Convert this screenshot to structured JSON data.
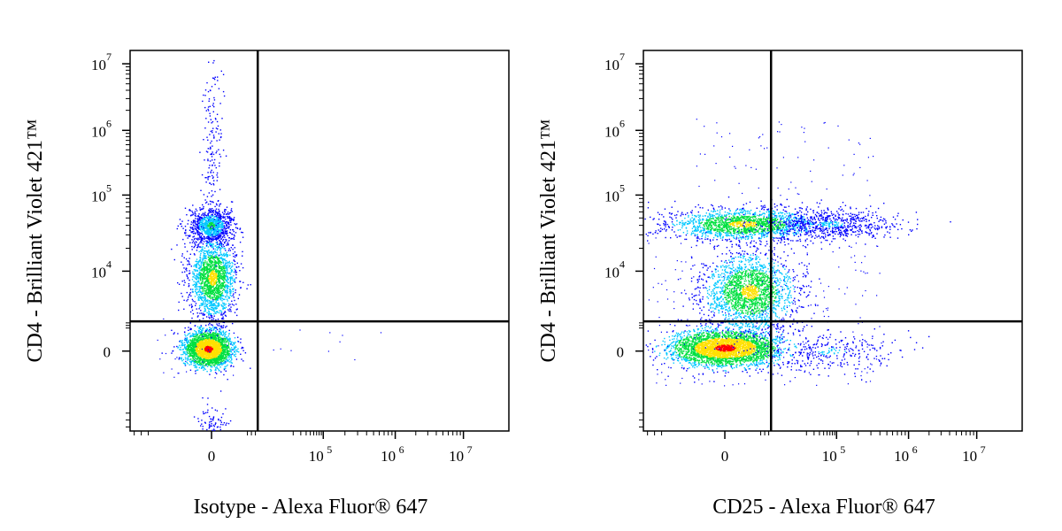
{
  "chart_data": [
    {
      "type": "scatter",
      "title": "",
      "xlabel": "Isotype - Alexa Fluor® 647",
      "ylabel": "CD4 - Brilliant Violet 421™",
      "x_scale": "biexponential",
      "y_scale": "biexponential",
      "x_ticks": [
        {
          "value": 0,
          "label": "0",
          "exp": ""
        },
        {
          "value": 100000,
          "label": "10",
          "exp": "5"
        },
        {
          "value": 1000000,
          "label": "10",
          "exp": "6"
        },
        {
          "value": 10000000,
          "label": "10",
          "exp": "7"
        }
      ],
      "y_ticks": [
        {
          "value": 10000000,
          "label": "10",
          "exp": "7"
        },
        {
          "value": 1000000,
          "label": "10",
          "exp": "6"
        },
        {
          "value": 100000,
          "label": "10",
          "exp": "5"
        },
        {
          "value": 10000,
          "label": "10",
          "exp": "4"
        },
        {
          "value": 0,
          "label": "0",
          "exp": ""
        }
      ],
      "gate_x": 3000,
      "gate_y": 3000,
      "populations": [
        {
          "x_center": 0,
          "y_center": 0,
          "density": "high"
        },
        {
          "x_center": 0,
          "y_center": 9000,
          "density": "medium"
        },
        {
          "x_center": 0,
          "y_center": 40000,
          "density": "medium"
        }
      ]
    },
    {
      "type": "scatter",
      "title": "",
      "xlabel": "CD25 - Alexa Fluor® 647",
      "ylabel": "CD4 - Brilliant Violet 421™",
      "x_scale": "biexponential",
      "y_scale": "biexponential",
      "x_ticks": [
        {
          "value": 0,
          "label": "0",
          "exp": ""
        },
        {
          "value": 100000,
          "label": "10",
          "exp": "5"
        },
        {
          "value": 1000000,
          "label": "10",
          "exp": "6"
        },
        {
          "value": 10000000,
          "label": "10",
          "exp": "7"
        }
      ],
      "y_ticks": [
        {
          "value": 10000000,
          "label": "10",
          "exp": "7"
        },
        {
          "value": 1000000,
          "label": "10",
          "exp": "6"
        },
        {
          "value": 100000,
          "label": "10",
          "exp": "5"
        },
        {
          "value": 10000,
          "label": "10",
          "exp": "4"
        },
        {
          "value": 0,
          "label": "0",
          "exp": ""
        }
      ],
      "gate_x": 3000,
      "gate_y": 3000,
      "populations": [
        {
          "x_center": 0,
          "y_center": 0,
          "density": "high"
        },
        {
          "x_center": 1000,
          "y_center": 7000,
          "density": "medium"
        },
        {
          "x_center": 1000,
          "y_center": 42000,
          "density": "medium"
        }
      ]
    }
  ],
  "colors": {
    "low": "#0000ff",
    "mid_low": "#00c8ff",
    "mid": "#00e040",
    "mid_high": "#ffe000",
    "high": "#ff0000",
    "axis": "#000000"
  }
}
